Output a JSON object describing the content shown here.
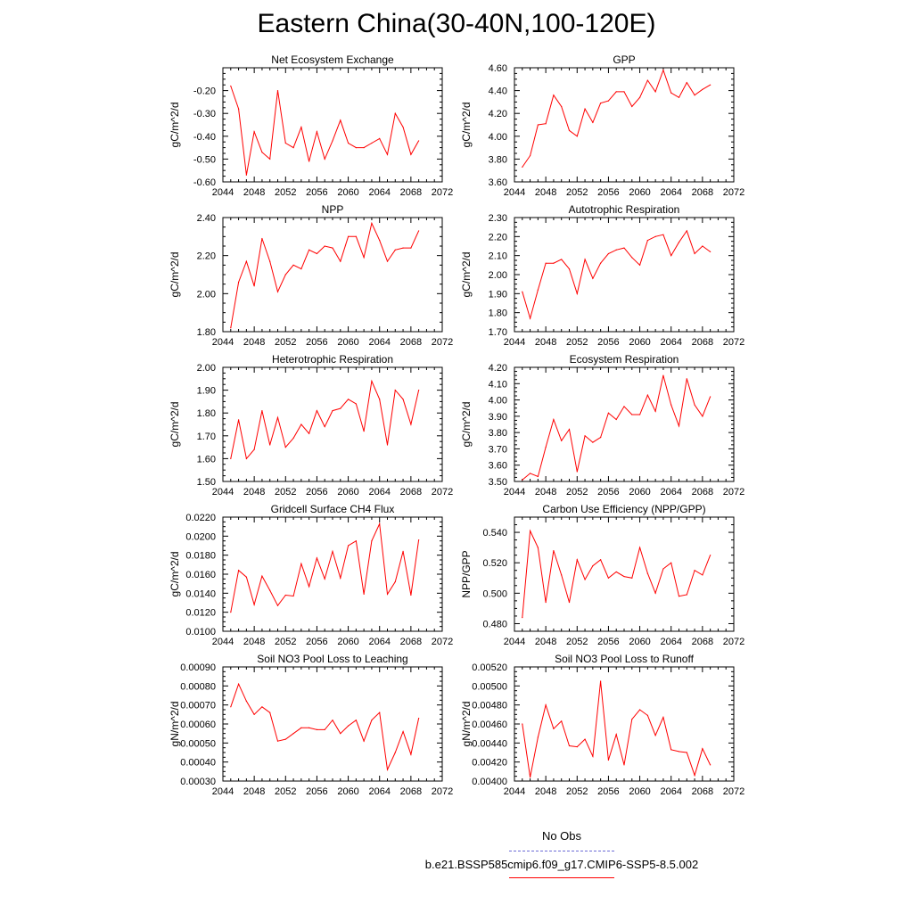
{
  "title": "Eastern China(30-40N,100-120E)",
  "legend": {
    "obs": {
      "label": "No Obs",
      "color": "#6b6bd6"
    },
    "model": {
      "label": "b.e21.BSSP585cmip6.f09_g17.CMIP6-SSP5-8.5.002",
      "color": "#ff0000"
    }
  },
  "chart_data": [
    {
      "type": "line",
      "title": "Net Ecosystem Exchange",
      "ylabel": "gC/m^2/d",
      "xlim": [
        2044,
        2072
      ],
      "xticks": [
        "2044",
        "2048",
        "2052",
        "2056",
        "2060",
        "2064",
        "2068",
        "2072"
      ],
      "ylim": [
        -0.6,
        -0.1
      ],
      "yticks": [
        "-0.20",
        "-0.30",
        "-0.40",
        "-0.50",
        "-0.60"
      ],
      "ytick_values": [
        -0.2,
        -0.3,
        -0.4,
        -0.5,
        -0.6
      ],
      "x": [
        2045,
        2046,
        2047,
        2048,
        2049,
        2050,
        2051,
        2052,
        2053,
        2054,
        2055,
        2056,
        2057,
        2058,
        2059,
        2060,
        2061,
        2062,
        2063,
        2064,
        2065,
        2066,
        2067,
        2068,
        2069
      ],
      "values": [
        -0.18,
        -0.28,
        -0.57,
        -0.38,
        -0.47,
        -0.5,
        -0.2,
        -0.43,
        -0.45,
        -0.36,
        -0.51,
        -0.38,
        -0.5,
        -0.42,
        -0.33,
        -0.43,
        -0.45,
        -0.45,
        -0.43,
        -0.41,
        -0.48,
        -0.3,
        -0.36,
        -0.48,
        -0.42
      ]
    },
    {
      "type": "line",
      "title": "GPP",
      "ylabel": "gC/m^2/d",
      "xlim": [
        2044,
        2072
      ],
      "xticks": [
        "2044",
        "2048",
        "2052",
        "2056",
        "2060",
        "2064",
        "2068",
        "2072"
      ],
      "ylim": [
        3.6,
        4.6
      ],
      "yticks": [
        "4.60",
        "4.40",
        "4.20",
        "4.00",
        "3.80",
        "3.60"
      ],
      "ytick_values": [
        4.6,
        4.4,
        4.2,
        4.0,
        3.8,
        3.6
      ],
      "x": [
        2045,
        2046,
        2047,
        2048,
        2049,
        2050,
        2051,
        2052,
        2053,
        2054,
        2055,
        2056,
        2057,
        2058,
        2059,
        2060,
        2061,
        2062,
        2063,
        2064,
        2065,
        2066,
        2067,
        2068,
        2069
      ],
      "values": [
        3.73,
        3.83,
        4.1,
        4.11,
        4.36,
        4.26,
        4.05,
        4.0,
        4.24,
        4.12,
        4.29,
        4.31,
        4.39,
        4.39,
        4.26,
        4.34,
        4.49,
        4.39,
        4.58,
        4.38,
        4.34,
        4.47,
        4.36,
        4.41,
        4.45
      ]
    },
    {
      "type": "line",
      "title": "NPP",
      "ylabel": "gC/m^2/d",
      "xlim": [
        2044,
        2072
      ],
      "xticks": [
        "2044",
        "2048",
        "2052",
        "2056",
        "2060",
        "2064",
        "2068",
        "2072"
      ],
      "ylim": [
        1.8,
        2.4
      ],
      "yticks": [
        "2.40",
        "2.20",
        "2.00",
        "1.80"
      ],
      "ytick_values": [
        2.4,
        2.2,
        2.0,
        1.8
      ],
      "x": [
        2045,
        2046,
        2047,
        2048,
        2049,
        2050,
        2051,
        2052,
        2053,
        2054,
        2055,
        2056,
        2057,
        2058,
        2059,
        2060,
        2061,
        2062,
        2063,
        2064,
        2065,
        2066,
        2067,
        2068,
        2069
      ],
      "values": [
        1.82,
        2.06,
        2.17,
        2.04,
        2.29,
        2.17,
        2.01,
        2.1,
        2.15,
        2.13,
        2.23,
        2.21,
        2.25,
        2.24,
        2.17,
        2.3,
        2.3,
        2.19,
        2.37,
        2.28,
        2.17,
        2.23,
        2.24,
        2.24,
        2.33
      ]
    },
    {
      "type": "line",
      "title": "Autotrophic Respiration",
      "ylabel": "gC/m^2/d",
      "xlim": [
        2044,
        2072
      ],
      "xticks": [
        "2044",
        "2048",
        "2052",
        "2056",
        "2060",
        "2064",
        "2068",
        "2072"
      ],
      "ylim": [
        1.7,
        2.3
      ],
      "yticks": [
        "2.30",
        "2.20",
        "2.10",
        "2.00",
        "1.90",
        "1.80",
        "1.70"
      ],
      "ytick_values": [
        2.3,
        2.2,
        2.1,
        2.0,
        1.9,
        1.8,
        1.7
      ],
      "x": [
        2045,
        2046,
        2047,
        2048,
        2049,
        2050,
        2051,
        2052,
        2053,
        2054,
        2055,
        2056,
        2057,
        2058,
        2059,
        2060,
        2061,
        2062,
        2063,
        2064,
        2065,
        2066,
        2067,
        2068,
        2069
      ],
      "values": [
        1.91,
        1.77,
        1.92,
        2.06,
        2.06,
        2.08,
        2.03,
        1.9,
        2.08,
        1.98,
        2.06,
        2.11,
        2.13,
        2.14,
        2.09,
        2.05,
        2.18,
        2.2,
        2.21,
        2.1,
        2.17,
        2.23,
        2.11,
        2.15,
        2.12
      ]
    },
    {
      "type": "line",
      "title": "Heterotrophic Respiration",
      "ylabel": "gC/m^2/d",
      "xlim": [
        2044,
        2072
      ],
      "xticks": [
        "2044",
        "2048",
        "2052",
        "2056",
        "2060",
        "2064",
        "2068",
        "2072"
      ],
      "ylim": [
        1.5,
        2.0
      ],
      "yticks": [
        "2.00",
        "1.90",
        "1.80",
        "1.70",
        "1.60",
        "1.50"
      ],
      "ytick_values": [
        2.0,
        1.9,
        1.8,
        1.7,
        1.6,
        1.5
      ],
      "x": [
        2045,
        2046,
        2047,
        2048,
        2049,
        2050,
        2051,
        2052,
        2053,
        2054,
        2055,
        2056,
        2057,
        2058,
        2059,
        2060,
        2061,
        2062,
        2063,
        2064,
        2065,
        2066,
        2067,
        2068,
        2069
      ],
      "values": [
        1.6,
        1.77,
        1.6,
        1.64,
        1.81,
        1.66,
        1.78,
        1.65,
        1.69,
        1.75,
        1.71,
        1.81,
        1.74,
        1.81,
        1.82,
        1.86,
        1.84,
        1.72,
        1.94,
        1.86,
        1.66,
        1.9,
        1.86,
        1.75,
        1.9
      ]
    },
    {
      "type": "line",
      "title": "Ecosystem Respiration",
      "ylabel": "gC/m^2/d",
      "xlim": [
        2044,
        2072
      ],
      "xticks": [
        "2044",
        "2048",
        "2052",
        "2056",
        "2060",
        "2064",
        "2068",
        "2072"
      ],
      "ylim": [
        3.5,
        4.2
      ],
      "yticks": [
        "4.20",
        "4.10",
        "4.00",
        "3.90",
        "3.80",
        "3.70",
        "3.60",
        "3.50"
      ],
      "ytick_values": [
        4.2,
        4.1,
        4.0,
        3.9,
        3.8,
        3.7,
        3.6,
        3.5
      ],
      "x": [
        2045,
        2046,
        2047,
        2048,
        2049,
        2050,
        2051,
        2052,
        2053,
        2054,
        2055,
        2056,
        2057,
        2058,
        2059,
        2060,
        2061,
        2062,
        2063,
        2064,
        2065,
        2066,
        2067,
        2068,
        2069
      ],
      "values": [
        3.51,
        3.55,
        3.53,
        3.71,
        3.88,
        3.75,
        3.82,
        3.56,
        3.78,
        3.74,
        3.77,
        3.92,
        3.88,
        3.96,
        3.91,
        3.91,
        4.03,
        3.93,
        4.15,
        3.97,
        3.84,
        4.13,
        3.97,
        3.9,
        4.02
      ]
    },
    {
      "type": "line",
      "title": "Gridcell Surface CH4 Flux",
      "ylabel": "gC/m^2/d",
      "xlim": [
        2044,
        2072
      ],
      "xticks": [
        "2044",
        "2048",
        "2052",
        "2056",
        "2060",
        "2064",
        "2068",
        "2072"
      ],
      "ylim": [
        0.01,
        0.022
      ],
      "yticks": [
        "0.0220",
        "0.0200",
        "0.0180",
        "0.0160",
        "0.0140",
        "0.0120",
        "0.0100"
      ],
      "ytick_values": [
        0.022,
        0.02,
        0.018,
        0.016,
        0.014,
        0.012,
        0.01
      ],
      "x": [
        2045,
        2046,
        2047,
        2048,
        2049,
        2050,
        2051,
        2052,
        2053,
        2054,
        2055,
        2056,
        2057,
        2058,
        2059,
        2060,
        2061,
        2062,
        2063,
        2064,
        2065,
        2066,
        2067,
        2068,
        2069
      ],
      "values": [
        0.012,
        0.0164,
        0.0157,
        0.0128,
        0.0158,
        0.0143,
        0.0127,
        0.0138,
        0.0137,
        0.0171,
        0.0147,
        0.0177,
        0.0155,
        0.0184,
        0.0156,
        0.019,
        0.0195,
        0.0139,
        0.0195,
        0.0213,
        0.0139,
        0.0152,
        0.0184,
        0.0138,
        0.0196
      ]
    },
    {
      "type": "line",
      "title": "Carbon Use Efficiency (NPP/GPP)",
      "ylabel": "NPP/GPP",
      "xlim": [
        2044,
        2072
      ],
      "xticks": [
        "2044",
        "2048",
        "2052",
        "2056",
        "2060",
        "2064",
        "2068",
        "2072"
      ],
      "ylim": [
        0.475,
        0.55
      ],
      "yticks": [
        "0.540",
        "0.520",
        "0.500",
        "0.480"
      ],
      "ytick_values": [
        0.54,
        0.52,
        0.5,
        0.48
      ],
      "x": [
        2045,
        2046,
        2047,
        2048,
        2049,
        2050,
        2051,
        2052,
        2053,
        2054,
        2055,
        2056,
        2057,
        2058,
        2059,
        2060,
        2061,
        2062,
        2063,
        2064,
        2065,
        2066,
        2067,
        2068,
        2069
      ],
      "values": [
        0.484,
        0.541,
        0.53,
        0.494,
        0.528,
        0.512,
        0.494,
        0.522,
        0.509,
        0.518,
        0.522,
        0.51,
        0.514,
        0.511,
        0.51,
        0.53,
        0.513,
        0.5,
        0.516,
        0.52,
        0.498,
        0.499,
        0.515,
        0.512,
        0.525
      ]
    },
    {
      "type": "line",
      "title": "Soil NO3 Pool Loss to Leaching",
      "ylabel": "gN/m^2/d",
      "xlim": [
        2044,
        2072
      ],
      "xticks": [
        "2044",
        "2048",
        "2052",
        "2056",
        "2060",
        "2064",
        "2068",
        "2072"
      ],
      "ylim": [
        0.0003,
        0.0009
      ],
      "yticks": [
        "0.00090",
        "0.00080",
        "0.00070",
        "0.00060",
        "0.00050",
        "0.00040",
        "0.00030"
      ],
      "ytick_values": [
        0.0009,
        0.0008,
        0.0007,
        0.0006,
        0.0005,
        0.0004,
        0.0003
      ],
      "x": [
        2045,
        2046,
        2047,
        2048,
        2049,
        2050,
        2051,
        2052,
        2053,
        2054,
        2055,
        2056,
        2057,
        2058,
        2059,
        2060,
        2061,
        2062,
        2063,
        2064,
        2065,
        2066,
        2067,
        2068,
        2069
      ],
      "values": [
        0.00069,
        0.00081,
        0.00072,
        0.00065,
        0.00069,
        0.00066,
        0.00051,
        0.00052,
        0.00055,
        0.00058,
        0.00058,
        0.00057,
        0.00057,
        0.00062,
        0.00055,
        0.00059,
        0.00062,
        0.00051,
        0.00062,
        0.00066,
        0.00036,
        0.00045,
        0.00056,
        0.00044,
        0.00063
      ]
    },
    {
      "type": "line",
      "title": "Soil NO3 Pool Loss to Runoff",
      "ylabel": "gN/m^2/d",
      "xlim": [
        2044,
        2072
      ],
      "xticks": [
        "2044",
        "2048",
        "2052",
        "2056",
        "2060",
        "2064",
        "2068",
        "2072"
      ],
      "ylim": [
        0.004,
        0.0052
      ],
      "yticks": [
        "0.00520",
        "0.00500",
        "0.00480",
        "0.00460",
        "0.00440",
        "0.00420",
        "0.00400"
      ],
      "ytick_values": [
        0.0052,
        0.005,
        0.0048,
        0.0046,
        0.0044,
        0.0042,
        0.004
      ],
      "x": [
        2045,
        2046,
        2047,
        2048,
        2049,
        2050,
        2051,
        2052,
        2053,
        2054,
        2055,
        2056,
        2057,
        2058,
        2059,
        2060,
        2061,
        2062,
        2063,
        2064,
        2065,
        2066,
        2067,
        2068,
        2069
      ],
      "values": [
        0.0046,
        0.00404,
        0.00446,
        0.0048,
        0.00455,
        0.00463,
        0.00437,
        0.00436,
        0.00444,
        0.00426,
        0.00505,
        0.00422,
        0.00449,
        0.00417,
        0.00465,
        0.00475,
        0.00469,
        0.00448,
        0.00467,
        0.00433,
        0.00431,
        0.0043,
        0.00406,
        0.00434,
        0.00417
      ]
    }
  ]
}
